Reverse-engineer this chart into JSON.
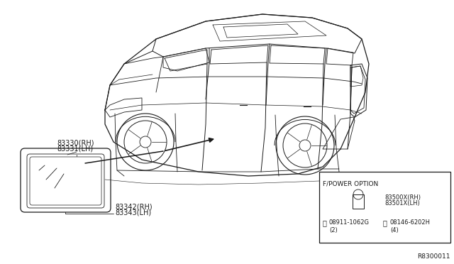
{
  "background_color": "#ffffff",
  "line_color": "#1a1a1a",
  "text_color": "#1a1a1a",
  "diagram_id": "R8300011",
  "labels": {
    "part_83330": "83330(RH)",
    "part_83331": "83331(LH)",
    "part_83342": "83342(RH)",
    "part_83343": "83343(LH)",
    "inset_title": "F/POWER OPTION",
    "part_83500": "83500X(RH)",
    "part_83501": "83501X(LH)",
    "part_08911": "08911-1062G",
    "part_08911_qty": "(2)",
    "part_08146": "08146-6202H",
    "part_08146_qty": "(4)"
  },
  "font_size_label": 7.0,
  "font_size_inset": 6.5,
  "font_size_id": 6.5
}
